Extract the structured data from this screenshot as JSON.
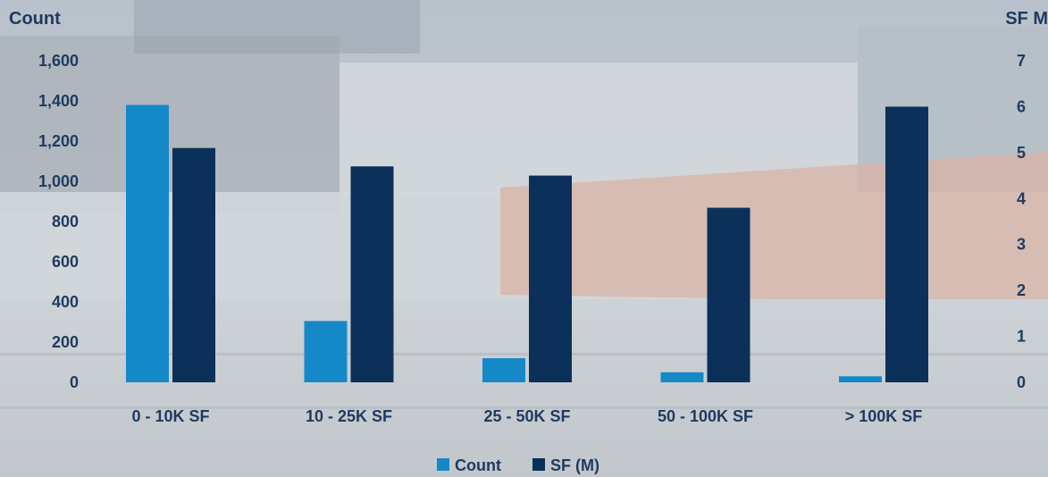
{
  "chart_data": {
    "type": "bar",
    "categories": [
      "0 - 10K SF",
      "10 - 25K SF",
      "25 - 50K SF",
      "50 - 100K SF",
      "> 100K SF"
    ],
    "series": [
      {
        "name": "Count",
        "axis": "left",
        "color": "#1589c8",
        "values": [
          1380,
          305,
          120,
          50,
          30
        ]
      },
      {
        "name": "SF (M)",
        "axis": "right",
        "color": "#0b3059",
        "values": [
          5.1,
          4.7,
          4.5,
          3.8,
          6.0
        ]
      }
    ],
    "yaxis_left": {
      "title": "Count",
      "ylim": [
        0,
        1600
      ],
      "ticks": [
        "0",
        "200",
        "400",
        "600",
        "800",
        "1,000",
        "1,200",
        "1,400",
        "1,600"
      ]
    },
    "yaxis_right": {
      "title": "SF M",
      "ylim": [
        0,
        7
      ],
      "ticks": [
        "0",
        "1",
        "2",
        "3",
        "4",
        "5",
        "6",
        "7"
      ]
    },
    "legend": {
      "position": "bottom",
      "items": [
        "Count",
        "SF (M)"
      ]
    },
    "grid": false
  }
}
